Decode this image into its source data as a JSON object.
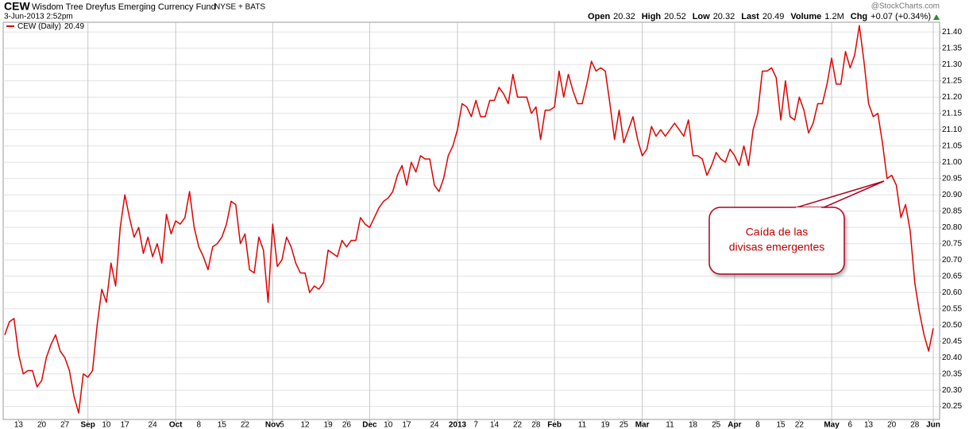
{
  "header": {
    "symbol": "CEW",
    "name": "Wisdom Tree Dreyfus Emerging Currency Fund",
    "exchange": "NYSE + BATS",
    "date": "3-Jun-2013 2:52pm",
    "source": "@StockCharts.com",
    "quote": [
      {
        "label": "Open",
        "value": "20.32"
      },
      {
        "label": "High",
        "value": "20.52"
      },
      {
        "label": "Low",
        "value": "20.32"
      },
      {
        "label": "Last",
        "value": "20.49"
      },
      {
        "label": "Volume",
        "value": "1.2M"
      },
      {
        "label": "Chg",
        "value": "+0.07 (+0.34%)"
      }
    ]
  },
  "chart_data": {
    "type": "line",
    "categories": [
      null,
      null,
      null,
      "13",
      null,
      null,
      null,
      null,
      "20",
      null,
      null,
      null,
      null,
      "27",
      null,
      null,
      null,
      null,
      "Sep",
      null,
      null,
      null,
      "10",
      null,
      null,
      null,
      "17",
      null,
      null,
      null,
      null,
      null,
      "24",
      null,
      null,
      null,
      null,
      "Oct",
      null,
      null,
      null,
      null,
      "8",
      null,
      null,
      null,
      null,
      "15",
      null,
      null,
      null,
      null,
      "22",
      null,
      null,
      null,
      null,
      null,
      "Nov",
      null,
      "5",
      null,
      null,
      null,
      null,
      "12",
      null,
      null,
      null,
      null,
      "19",
      null,
      null,
      null,
      "26",
      null,
      null,
      null,
      null,
      "Dec",
      null,
      null,
      null,
      "10",
      null,
      null,
      null,
      "17",
      null,
      null,
      null,
      null,
      null,
      "24",
      null,
      null,
      null,
      null,
      "2013",
      null,
      null,
      null,
      "7",
      null,
      null,
      null,
      "14",
      null,
      null,
      null,
      null,
      "22",
      null,
      null,
      null,
      "28",
      null,
      null,
      null,
      "Feb",
      null,
      null,
      null,
      null,
      null,
      "11",
      null,
      null,
      null,
      null,
      "19",
      null,
      null,
      null,
      "25",
      null,
      null,
      null,
      "Mar",
      null,
      null,
      null,
      null,
      null,
      "11",
      null,
      null,
      null,
      null,
      "18",
      null,
      null,
      null,
      null,
      "25",
      null,
      null,
      null,
      "Apr",
      null,
      null,
      null,
      null,
      "8",
      null,
      null,
      null,
      null,
      "15",
      null,
      null,
      null,
      "22",
      null,
      null,
      null,
      null,
      null,
      null,
      "May",
      null,
      null,
      null,
      "6",
      null,
      null,
      null,
      "13",
      null,
      null,
      null,
      null,
      "20",
      null,
      null,
      null,
      null,
      "28",
      null,
      null,
      null,
      "Jun"
    ],
    "series": [
      {
        "name": "CEW (Daily)",
        "color": "#e00000",
        "values": [
          20.47,
          20.51,
          20.52,
          20.41,
          20.35,
          20.36,
          20.36,
          20.31,
          20.33,
          20.4,
          20.44,
          20.47,
          20.42,
          20.4,
          20.36,
          20.28,
          20.23,
          20.35,
          20.34,
          20.36,
          20.5,
          20.61,
          20.57,
          20.69,
          20.62,
          20.8,
          20.9,
          20.83,
          20.77,
          20.8,
          20.72,
          20.77,
          20.71,
          20.75,
          20.69,
          20.84,
          20.78,
          20.82,
          20.81,
          20.83,
          20.91,
          20.8,
          20.74,
          20.71,
          20.67,
          20.74,
          20.75,
          20.77,
          20.81,
          20.88,
          20.87,
          20.75,
          20.78,
          20.67,
          20.66,
          20.77,
          20.73,
          20.57,
          20.81,
          20.68,
          20.7,
          20.77,
          20.74,
          20.69,
          20.66,
          20.66,
          20.6,
          20.62,
          20.61,
          20.63,
          20.73,
          20.72,
          20.71,
          20.76,
          20.74,
          20.76,
          20.76,
          20.83,
          20.81,
          20.8,
          20.83,
          20.86,
          20.88,
          20.89,
          20.91,
          20.96,
          20.99,
          20.93,
          21.0,
          20.97,
          21.02,
          21.01,
          21.01,
          20.93,
          20.91,
          20.95,
          21.02,
          21.05,
          21.1,
          21.18,
          21.17,
          21.14,
          21.19,
          21.14,
          21.14,
          21.19,
          21.19,
          21.23,
          21.21,
          21.18,
          21.27,
          21.2,
          21.2,
          21.2,
          21.15,
          21.17,
          21.07,
          21.16,
          21.16,
          21.17,
          21.28,
          21.2,
          21.27,
          21.22,
          21.18,
          21.18,
          21.24,
          21.31,
          21.28,
          21.29,
          21.28,
          21.18,
          21.07,
          21.16,
          21.06,
          21.1,
          21.14,
          21.07,
          21.02,
          21.04,
          21.11,
          21.08,
          21.1,
          21.08,
          21.1,
          21.12,
          21.1,
          21.08,
          21.13,
          21.02,
          21.02,
          21.01,
          20.96,
          20.99,
          21.03,
          21.01,
          21.0,
          21.04,
          21.02,
          20.99,
          21.05,
          20.99,
          21.1,
          21.15,
          21.28,
          21.28,
          21.29,
          21.26,
          21.13,
          21.25,
          21.14,
          21.13,
          21.2,
          21.16,
          21.09,
          21.12,
          21.18,
          21.18,
          21.24,
          21.32,
          21.24,
          21.24,
          21.34,
          21.29,
          21.33,
          21.42,
          21.31,
          21.18,
          21.14,
          21.15,
          21.06,
          20.95,
          20.96,
          20.93,
          20.83,
          20.87,
          20.79,
          20.63,
          20.54,
          20.47,
          20.42,
          20.49
        ]
      }
    ],
    "ylim": [
      20.21,
      21.43
    ],
    "yticks": [
      20.25,
      {
        "value": 20.3,
        "label": "20.30"
      },
      20.35,
      {
        "value": 20.4,
        "label": "20.40"
      },
      20.45,
      {
        "value": 20.5,
        "label": "20.50"
      },
      20.55,
      {
        "value": 20.6,
        "label": "20.60"
      },
      20.65,
      {
        "value": 20.7,
        "label": "20.70"
      },
      20.75,
      {
        "value": 20.8,
        "label": "20.80"
      },
      20.85,
      {
        "value": 20.9,
        "label": "20.90"
      },
      20.95,
      {
        "value": 21,
        "label": "21.00"
      },
      21.05,
      {
        "value": 21.1,
        "label": "21.10"
      },
      21.15,
      {
        "value": 21.2,
        "label": "21.20"
      },
      21.25,
      {
        "value": 21.3,
        "label": "21.30"
      },
      21.35,
      {
        "value": 21.4,
        "label": "21.40"
      }
    ],
    "grid": true,
    "annotation": {
      "lines": [
        "Caída de las",
        "divisas emergentes"
      ],
      "x_index": 190
    }
  }
}
